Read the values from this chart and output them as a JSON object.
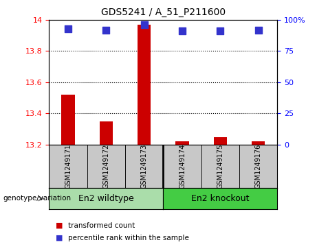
{
  "title": "GDS5241 / A_51_P211600",
  "samples": [
    "GSM1249171",
    "GSM1249172",
    "GSM1249173",
    "GSM1249174",
    "GSM1249175",
    "GSM1249176"
  ],
  "transformed_counts": [
    13.52,
    13.35,
    13.97,
    13.22,
    13.245,
    13.22
  ],
  "percentile_ranks": [
    93,
    92,
    96,
    91,
    91,
    92
  ],
  "ylim_left": [
    13.2,
    14.0
  ],
  "ylim_right": [
    0,
    100
  ],
  "yticks_left": [
    13.2,
    13.4,
    13.6,
    13.8,
    14.0
  ],
  "ytick_labels_left": [
    "13.2",
    "13.4",
    "13.6",
    "13.8",
    "14"
  ],
  "yticks_right": [
    0,
    25,
    50,
    75,
    100
  ],
  "ytick_labels_right": [
    "0",
    "25",
    "50",
    "75",
    "100%"
  ],
  "bar_color": "#cc0000",
  "dot_color": "#3333cc",
  "background_color": "#ffffff",
  "sample_box_color": "#c8c8c8",
  "group1_color": "#aaddaa",
  "group2_color": "#44cc44",
  "groups": [
    {
      "label": "En2 wildtype",
      "start": 0,
      "end": 2
    },
    {
      "label": "En2 knockout",
      "start": 3,
      "end": 5
    }
  ],
  "group_label_prefix": "genotype/variation",
  "legend_items": [
    {
      "label": "transformed count",
      "color": "#cc0000"
    },
    {
      "label": "percentile rank within the sample",
      "color": "#3333cc"
    }
  ],
  "bar_width": 0.35,
  "dot_size": 55,
  "bar_baseline": 13.2,
  "grid_dotted_at": [
    13.4,
    13.6,
    13.8
  ]
}
